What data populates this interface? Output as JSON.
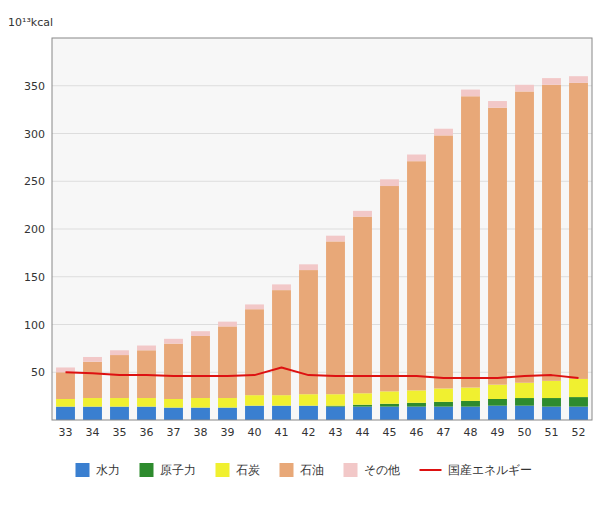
{
  "chart_data": {
    "type": "bar",
    "stacked": true,
    "grid": true,
    "legend": "bottom",
    "ylabel": "10¹³kcal",
    "categories": [
      "33",
      "34",
      "35",
      "36",
      "37",
      "38",
      "39",
      "40",
      "41",
      "42",
      "43",
      "44",
      "45",
      "46",
      "47",
      "48",
      "49",
      "50",
      "51",
      "52"
    ],
    "ylim": [
      0,
      400
    ],
    "yticks": [
      50,
      100,
      150,
      200,
      250,
      300,
      350
    ],
    "series": [
      {
        "name": "水力",
        "color": "#3A7FD0",
        "values": [
          14,
          14,
          14,
          14,
          13,
          13,
          13,
          15,
          15,
          15,
          14,
          14,
          14,
          14,
          14,
          14,
          15,
          15,
          14,
          14
        ]
      },
      {
        "name": "原子力",
        "color": "#2E8B2E",
        "values": [
          0,
          0,
          0,
          0,
          0,
          0,
          0,
          0,
          0,
          0,
          1,
          2,
          3,
          4,
          5,
          6,
          7,
          8,
          9,
          10
        ]
      },
      {
        "name": "石炭",
        "color": "#F0F030",
        "values": [
          8,
          9,
          9,
          9,
          9,
          10,
          10,
          11,
          11,
          12,
          12,
          12,
          13,
          13,
          14,
          14,
          15,
          16,
          18,
          19
        ]
      },
      {
        "name": "石油",
        "color": "#E8A878",
        "values": [
          28,
          38,
          45,
          50,
          58,
          65,
          75,
          90,
          110,
          130,
          160,
          185,
          215,
          240,
          265,
          305,
          290,
          305,
          310,
          310
        ]
      },
      {
        "name": "その他",
        "color": "#F2C8C8",
        "values": [
          5,
          5,
          5,
          5,
          5,
          5,
          5,
          5,
          6,
          6,
          6,
          6,
          7,
          7,
          7,
          7,
          7,
          7,
          7,
          7
        ]
      },
      {
        "name": "国産エネルギー",
        "color": "#DD1111",
        "type": "line",
        "values": [
          50,
          49,
          47,
          47,
          46,
          46,
          46,
          47,
          55,
          47,
          46,
          46,
          46,
          46,
          44,
          44,
          44,
          46,
          47,
          44
        ]
      }
    ]
  }
}
